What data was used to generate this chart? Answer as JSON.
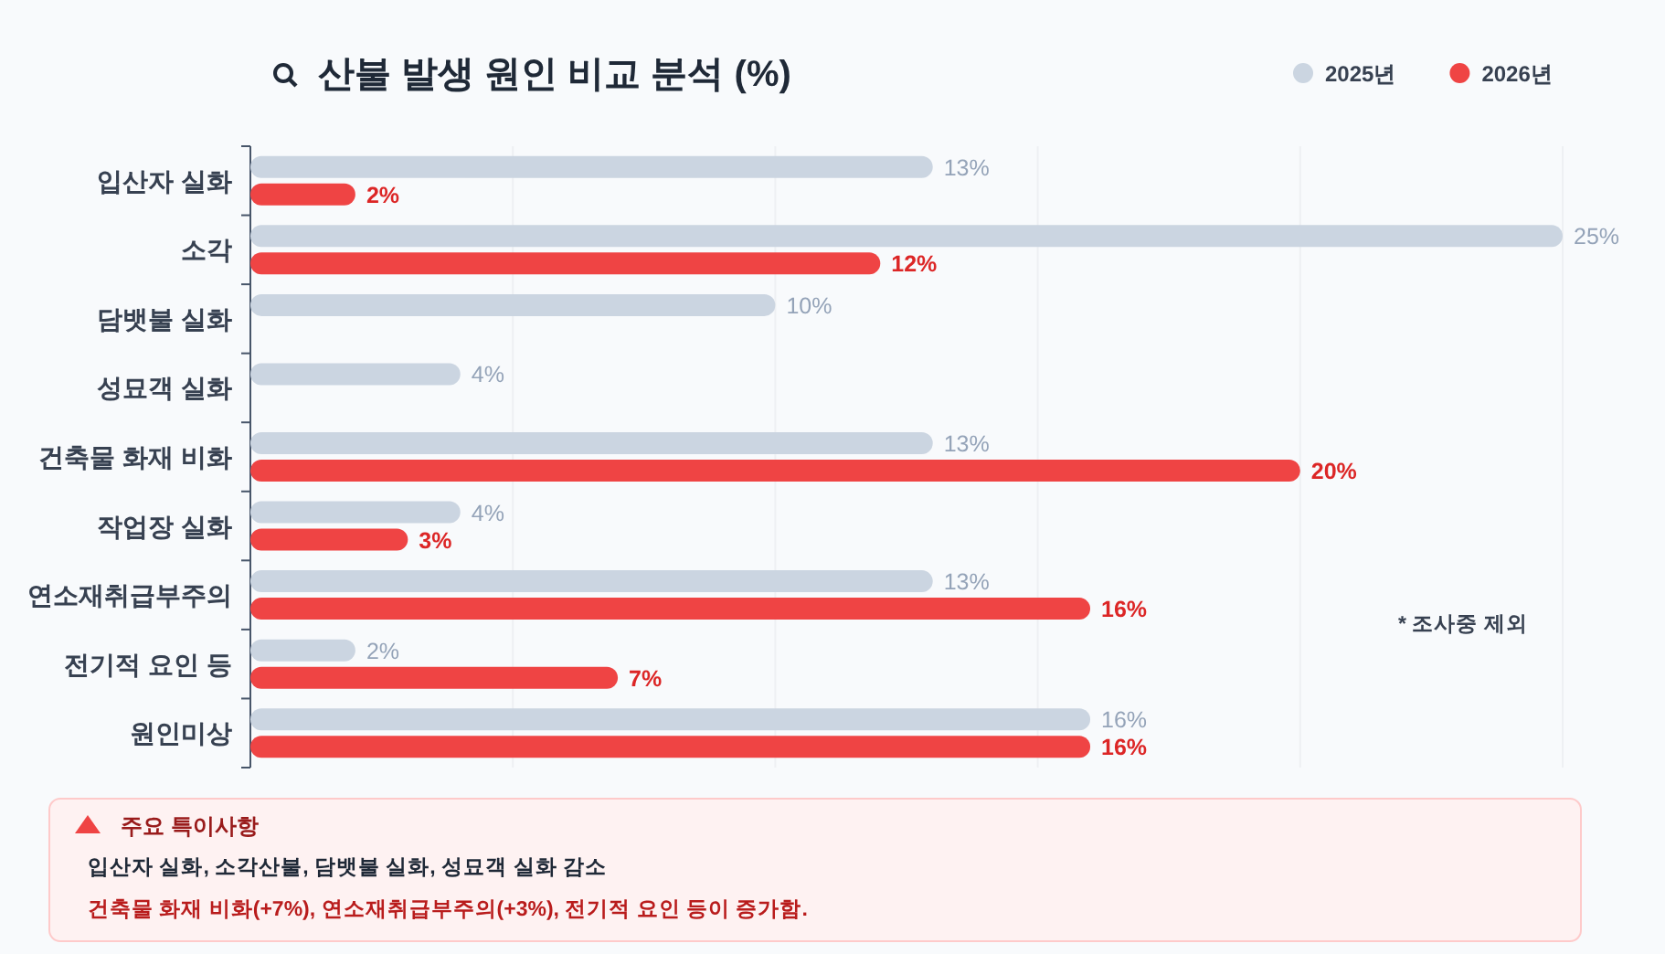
{
  "chart_data": {
    "type": "bar",
    "orientation": "horizontal",
    "title": "산불 발생 원인 비교 분석 (%)",
    "categories": [
      "입산자 실화",
      "소각",
      "담뱃불 실화",
      "성묘객 실화",
      "건축물 화재 비화",
      "작업장 실화",
      "연소재취급부주의",
      "전기적 요인 등",
      "원인미상"
    ],
    "series": [
      {
        "name": "2025년",
        "color": "#cbd5e1",
        "values": [
          13,
          25,
          10,
          4,
          13,
          4,
          13,
          2,
          16
        ],
        "value_labels": [
          "13%",
          "25%",
          "10%",
          "4%",
          "13%",
          "4%",
          "13%",
          "2%",
          "16%"
        ]
      },
      {
        "name": "2026년",
        "color": "#ef4444",
        "values": [
          2,
          12,
          null,
          null,
          20,
          3,
          16,
          7,
          16
        ],
        "value_labels": [
          "2%",
          "12%",
          null,
          null,
          "20%",
          "3%",
          "16%",
          "7%",
          "16%"
        ]
      }
    ],
    "xlim": [
      0,
      25
    ],
    "xticks": [
      {
        "value": 0,
        "label": null
      },
      {
        "value": 5,
        "label": null
      },
      {
        "value": 10,
        "label": null
      },
      {
        "value": 15,
        "label": null
      },
      {
        "value": 20,
        "label": null
      },
      {
        "value": 25,
        "label": null
      }
    ],
    "grid": "x",
    "legend": "top right",
    "tick_labels": "y",
    "annotations": [
      "* 조사중 제외",
      "주요 특이사항",
      "입산자 실화, 소각산불, 담뱃불 실화, 성묘객 실화 감소",
      "건축물 화재 비화(+7%), 연소재취급부주의(+3%), 전기적 요인 등이 증가함."
    ]
  }
}
